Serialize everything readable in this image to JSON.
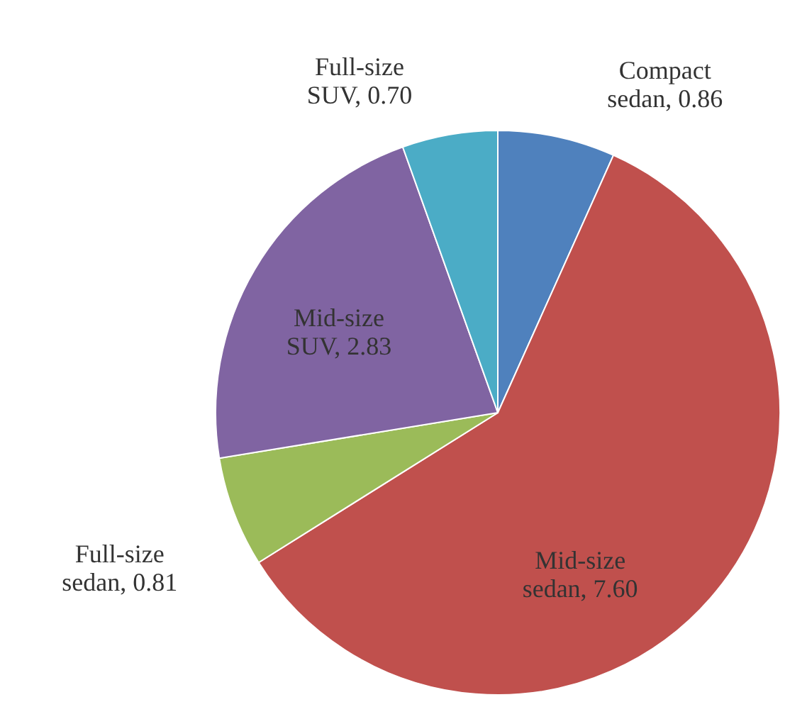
{
  "chart_data": {
    "type": "pie",
    "categories": [
      "Compact sedan",
      "Mid-size sedan",
      "Full-size sedan",
      "Mid-size SUV",
      "Full-size SUV"
    ],
    "values": [
      0.86,
      7.6,
      0.81,
      2.83,
      0.7
    ],
    "value_labels": [
      "0.86",
      "7.60",
      "0.81",
      "2.83",
      "0.70"
    ],
    "colors": [
      "#4f81bd",
      "#c0504d",
      "#9bbb59",
      "#8064a2",
      "#4bacc6"
    ]
  }
}
